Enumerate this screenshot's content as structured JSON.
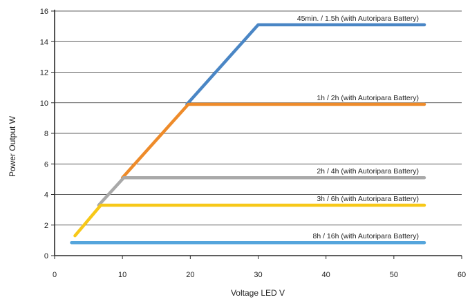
{
  "chart_data": {
    "type": "line",
    "title": "",
    "xlabel": "Voltage LED V",
    "ylabel": "Power Output W",
    "xlim": [
      0,
      60
    ],
    "ylim": [
      0,
      16
    ],
    "xticks": [
      "0",
      "10",
      "20",
      "30",
      "40",
      "50",
      "60"
    ],
    "yticks": [
      "0",
      "2",
      "4",
      "6",
      "8",
      "10",
      "12",
      "14",
      "16"
    ],
    "grid": "horizontal",
    "legend": "none",
    "series": [
      {
        "name": "45min. / 1.5h (with Autoripara Battery)",
        "color": "#4a86c5",
        "x": [
          19.5,
          30,
          54.5
        ],
        "y": [
          9.9,
          15.1,
          15.1
        ]
      },
      {
        "name": "1h / 2h (with Autoripara Battery)",
        "color": "#ee8b2a",
        "x": [
          10,
          19.7,
          54.5
        ],
        "y": [
          5.1,
          9.9,
          9.9
        ]
      },
      {
        "name": "2h / 4h (with Autoripara Battery)",
        "color": "#a9a9a9",
        "x": [
          6.5,
          10.2,
          54.5
        ],
        "y": [
          3.3,
          5.1,
          5.1
        ]
      },
      {
        "name": "3h / 6h (with Autoripara Battery)",
        "color": "#f7c818",
        "x": [
          3,
          6.8,
          54.5
        ],
        "y": [
          1.3,
          3.3,
          3.3
        ]
      },
      {
        "name": "8h / 16h (with Autoripara Battery)",
        "color": "#55a5dc",
        "x": [
          2.5,
          54.5
        ],
        "y": [
          0.85,
          0.85
        ]
      }
    ]
  }
}
